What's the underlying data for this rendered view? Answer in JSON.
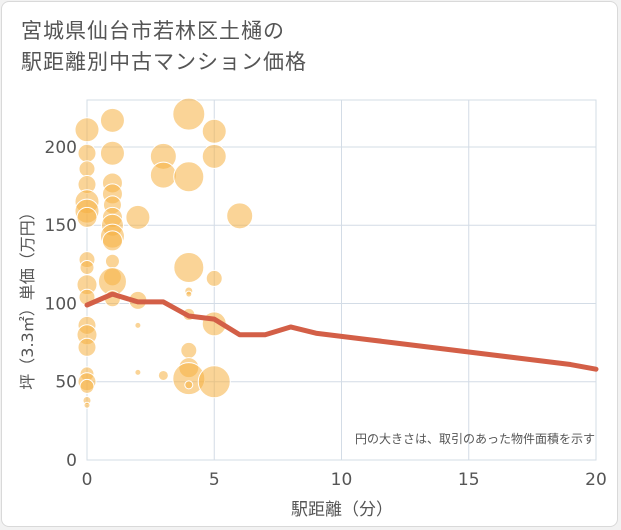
{
  "chart_data": {
    "type": "scatter",
    "title_lines": [
      "宮城県仙台市若林区土樋の",
      "駅距離別中古マンション価格"
    ],
    "xlabel": "駅距離（分）",
    "ylabel": "坪（3.3㎡）単価（万円）",
    "xlim": [
      0,
      20
    ],
    "ylim": [
      0,
      230
    ],
    "xticks": [
      0,
      5,
      10,
      15,
      20
    ],
    "yticks": [
      0,
      50,
      100,
      150,
      200
    ],
    "grid": true,
    "annotation": "円の大きさは、取引のあった物件面積を示す",
    "colors": {
      "bubble": "#f5b041",
      "line": "#d35f47",
      "grid": "#d3dce6",
      "text": "#555555"
    },
    "bubbles": [
      {
        "x": 0,
        "y": 211,
        "r": 12
      },
      {
        "x": 0,
        "y": 196,
        "r": 9
      },
      {
        "x": 0,
        "y": 186,
        "r": 8
      },
      {
        "x": 0,
        "y": 176,
        "r": 9
      },
      {
        "x": 0,
        "y": 165,
        "r": 12
      },
      {
        "x": 0,
        "y": 159,
        "r": 12
      },
      {
        "x": 0,
        "y": 155,
        "r": 10
      },
      {
        "x": 0,
        "y": 128,
        "r": 8
      },
      {
        "x": 0,
        "y": 123,
        "r": 7
      },
      {
        "x": 0,
        "y": 112,
        "r": 10
      },
      {
        "x": 0,
        "y": 104,
        "r": 8
      },
      {
        "x": 0,
        "y": 86,
        "r": 9
      },
      {
        "x": 0,
        "y": 80,
        "r": 10
      },
      {
        "x": 0,
        "y": 72,
        "r": 9
      },
      {
        "x": 0,
        "y": 55,
        "r": 7
      },
      {
        "x": 0,
        "y": 50,
        "r": 9
      },
      {
        "x": 0,
        "y": 47,
        "r": 7
      },
      {
        "x": 0,
        "y": 38,
        "r": 4
      },
      {
        "x": 0,
        "y": 35,
        "r": 3
      },
      {
        "x": 1,
        "y": 217,
        "r": 12
      },
      {
        "x": 1,
        "y": 196,
        "r": 12
      },
      {
        "x": 1,
        "y": 177,
        "r": 10
      },
      {
        "x": 1,
        "y": 170,
        "r": 10
      },
      {
        "x": 1,
        "y": 163,
        "r": 9
      },
      {
        "x": 1,
        "y": 155,
        "r": 10
      },
      {
        "x": 1,
        "y": 150,
        "r": 11
      },
      {
        "x": 1,
        "y": 143,
        "r": 12
      },
      {
        "x": 1,
        "y": 140,
        "r": 10
      },
      {
        "x": 1,
        "y": 127,
        "r": 7
      },
      {
        "x": 1,
        "y": 117,
        "r": 9
      },
      {
        "x": 1,
        "y": 114,
        "r": 14
      },
      {
        "x": 1,
        "y": 103,
        "r": 8
      },
      {
        "x": 2,
        "y": 155,
        "r": 12
      },
      {
        "x": 2,
        "y": 102,
        "r": 9
      },
      {
        "x": 2,
        "y": 86,
        "r": 3
      },
      {
        "x": 2,
        "y": 56,
        "r": 3
      },
      {
        "x": 3,
        "y": 194,
        "r": 13
      },
      {
        "x": 3,
        "y": 182,
        "r": 13
      },
      {
        "x": 3,
        "y": 54,
        "r": 5
      },
      {
        "x": 4,
        "y": 221,
        "r": 16
      },
      {
        "x": 4,
        "y": 181,
        "r": 15
      },
      {
        "x": 4,
        "y": 123,
        "r": 15
      },
      {
        "x": 4,
        "y": 108,
        "r": 4
      },
      {
        "x": 4,
        "y": 106,
        "r": 3
      },
      {
        "x": 4,
        "y": 93,
        "r": 6
      },
      {
        "x": 4,
        "y": 70,
        "r": 8
      },
      {
        "x": 4,
        "y": 59,
        "r": 10
      },
      {
        "x": 4,
        "y": 52,
        "r": 16
      },
      {
        "x": 4,
        "y": 48,
        "r": 4
      },
      {
        "x": 5,
        "y": 210,
        "r": 12
      },
      {
        "x": 5,
        "y": 194,
        "r": 12
      },
      {
        "x": 5,
        "y": 116,
        "r": 8
      },
      {
        "x": 5,
        "y": 87,
        "r": 12
      },
      {
        "x": 5,
        "y": 50,
        "r": 16
      },
      {
        "x": 6,
        "y": 156,
        "r": 13
      }
    ],
    "trend": {
      "x": [
        0,
        1,
        2,
        3,
        4,
        5,
        6,
        7,
        8,
        9,
        10,
        11,
        12,
        13,
        14,
        15,
        16,
        17,
        18,
        19,
        20
      ],
      "y": [
        99,
        106,
        101,
        101,
        92,
        90,
        80,
        80,
        85,
        81,
        79,
        77,
        75,
        73,
        71,
        69,
        67,
        65,
        63,
        61,
        58
      ]
    }
  }
}
